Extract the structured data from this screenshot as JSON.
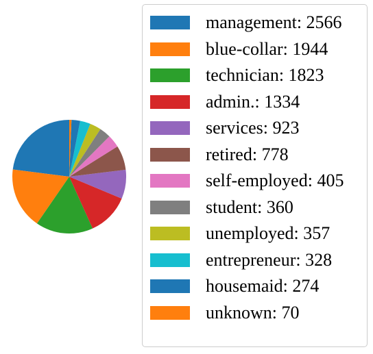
{
  "chart_data": {
    "type": "pie",
    "title": "",
    "legend_placement": "right",
    "startangle_deg": 90,
    "direction": "counterclockwise",
    "slices": [
      {
        "label": "management: 2566",
        "value": 2566,
        "color": "#1f77b4"
      },
      {
        "label": "blue-collar: 1944",
        "value": 1944,
        "color": "#ff7f0e"
      },
      {
        "label": "technician: 1823",
        "value": 1823,
        "color": "#2ca02c"
      },
      {
        "label": "admin.: 1334",
        "value": 1334,
        "color": "#d62728"
      },
      {
        "label": "services: 923",
        "value": 923,
        "color": "#9467bd"
      },
      {
        "label": "retired: 778",
        "value": 778,
        "color": "#8c564b"
      },
      {
        "label": "self-employed: 405",
        "value": 405,
        "color": "#e377c2"
      },
      {
        "label": "student: 360",
        "value": 360,
        "color": "#7f7f7f"
      },
      {
        "label": "unemployed: 357",
        "value": 357,
        "color": "#bcbd22"
      },
      {
        "label": "entrepreneur: 328",
        "value": 328,
        "color": "#17becf"
      },
      {
        "label": "housemaid: 274",
        "value": 274,
        "color": "#1f77b4"
      },
      {
        "label": "unknown: 70",
        "value": 70,
        "color": "#ff7f0e"
      }
    ]
  }
}
